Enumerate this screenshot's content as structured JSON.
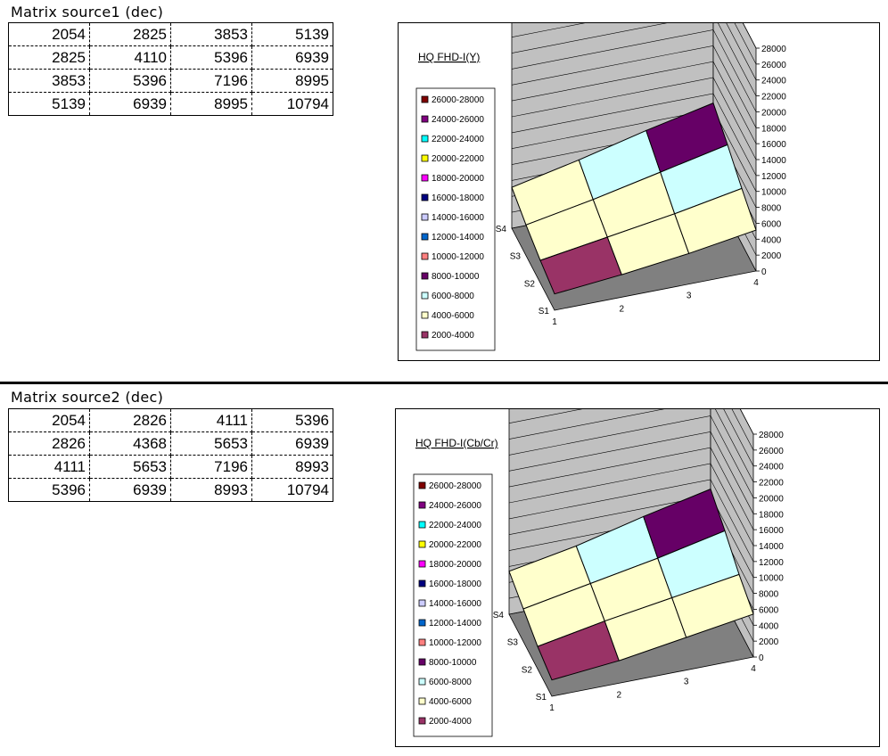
{
  "matrix1": {
    "title": "Matrix source1 (dec)",
    "rows": [
      [
        "2054",
        "2825",
        "3853",
        "5139"
      ],
      [
        "2825",
        "4110",
        "5396",
        "6939"
      ],
      [
        "3853",
        "5396",
        "7196",
        "8995"
      ],
      [
        "5139",
        "6939",
        "8995",
        "10794"
      ]
    ]
  },
  "matrix2": {
    "title": "Matrix source2 (dec)",
    "rows": [
      [
        "2054",
        "2826",
        "4111",
        "5396"
      ],
      [
        "2826",
        "4368",
        "5653",
        "6939"
      ],
      [
        "4111",
        "5653",
        "7196",
        "8993"
      ],
      [
        "5396",
        "6939",
        "8993",
        "10794"
      ]
    ]
  },
  "colors": {
    "wall": "#c0c0c0",
    "floor": "#808080",
    "bands": {
      "2000-4000": "#993366",
      "4000-6000": "#ffffcc",
      "6000-8000": "#ccffff",
      "8000-10000": "#660066",
      "10000-12000": "#ff8080",
      "12000-14000": "#0066cc",
      "14000-16000": "#ccccff",
      "16000-18000": "#000080",
      "18000-20000": "#ff00ff",
      "20000-22000": "#ffff00",
      "22000-24000": "#00ffff",
      "24000-26000": "#800080",
      "26000-28000": "#800000"
    }
  },
  "chart_data": [
    {
      "type": "surface-3d",
      "title": "HQ FHD-I(Y)",
      "x": [
        "1",
        "2",
        "3",
        "4"
      ],
      "y": [
        "S1",
        "S2",
        "S3",
        "S4"
      ],
      "z": [
        [
          2054,
          2825,
          3853,
          5139
        ],
        [
          2825,
          4110,
          5396,
          6939
        ],
        [
          3853,
          5396,
          7196,
          8995
        ],
        [
          5139,
          6939,
          8995,
          10794
        ]
      ],
      "zlim": [
        0,
        28000
      ],
      "zticks": [
        "0",
        "2000",
        "4000",
        "6000",
        "8000",
        "10000",
        "12000",
        "14000",
        "16000",
        "18000",
        "20000",
        "22000",
        "24000",
        "26000",
        "28000"
      ],
      "legend": [
        "26000-28000",
        "24000-26000",
        "22000-24000",
        "20000-22000",
        "18000-20000",
        "16000-18000",
        "14000-16000",
        "12000-14000",
        "10000-12000",
        "8000-10000",
        "6000-8000",
        "4000-6000",
        "2000-4000"
      ],
      "legend_position": "left"
    },
    {
      "type": "surface-3d",
      "title": "HQ FHD-I(Cb/Cr)",
      "x": [
        "1",
        "2",
        "3",
        "4"
      ],
      "y": [
        "S1",
        "S2",
        "S3",
        "S4"
      ],
      "z": [
        [
          2054,
          2826,
          4111,
          5396
        ],
        [
          2826,
          4368,
          5653,
          6939
        ],
        [
          4111,
          5653,
          7196,
          8993
        ],
        [
          5396,
          6939,
          8993,
          10794
        ]
      ],
      "zlim": [
        0,
        28000
      ],
      "zticks": [
        "0",
        "2000",
        "4000",
        "6000",
        "8000",
        "10000",
        "12000",
        "14000",
        "16000",
        "18000",
        "20000",
        "22000",
        "24000",
        "26000",
        "28000"
      ],
      "legend": [
        "26000-28000",
        "24000-26000",
        "22000-24000",
        "20000-22000",
        "18000-20000",
        "16000-18000",
        "14000-16000",
        "12000-14000",
        "10000-12000",
        "8000-10000",
        "6000-8000",
        "4000-6000",
        "2000-4000"
      ],
      "legend_position": "left"
    }
  ]
}
